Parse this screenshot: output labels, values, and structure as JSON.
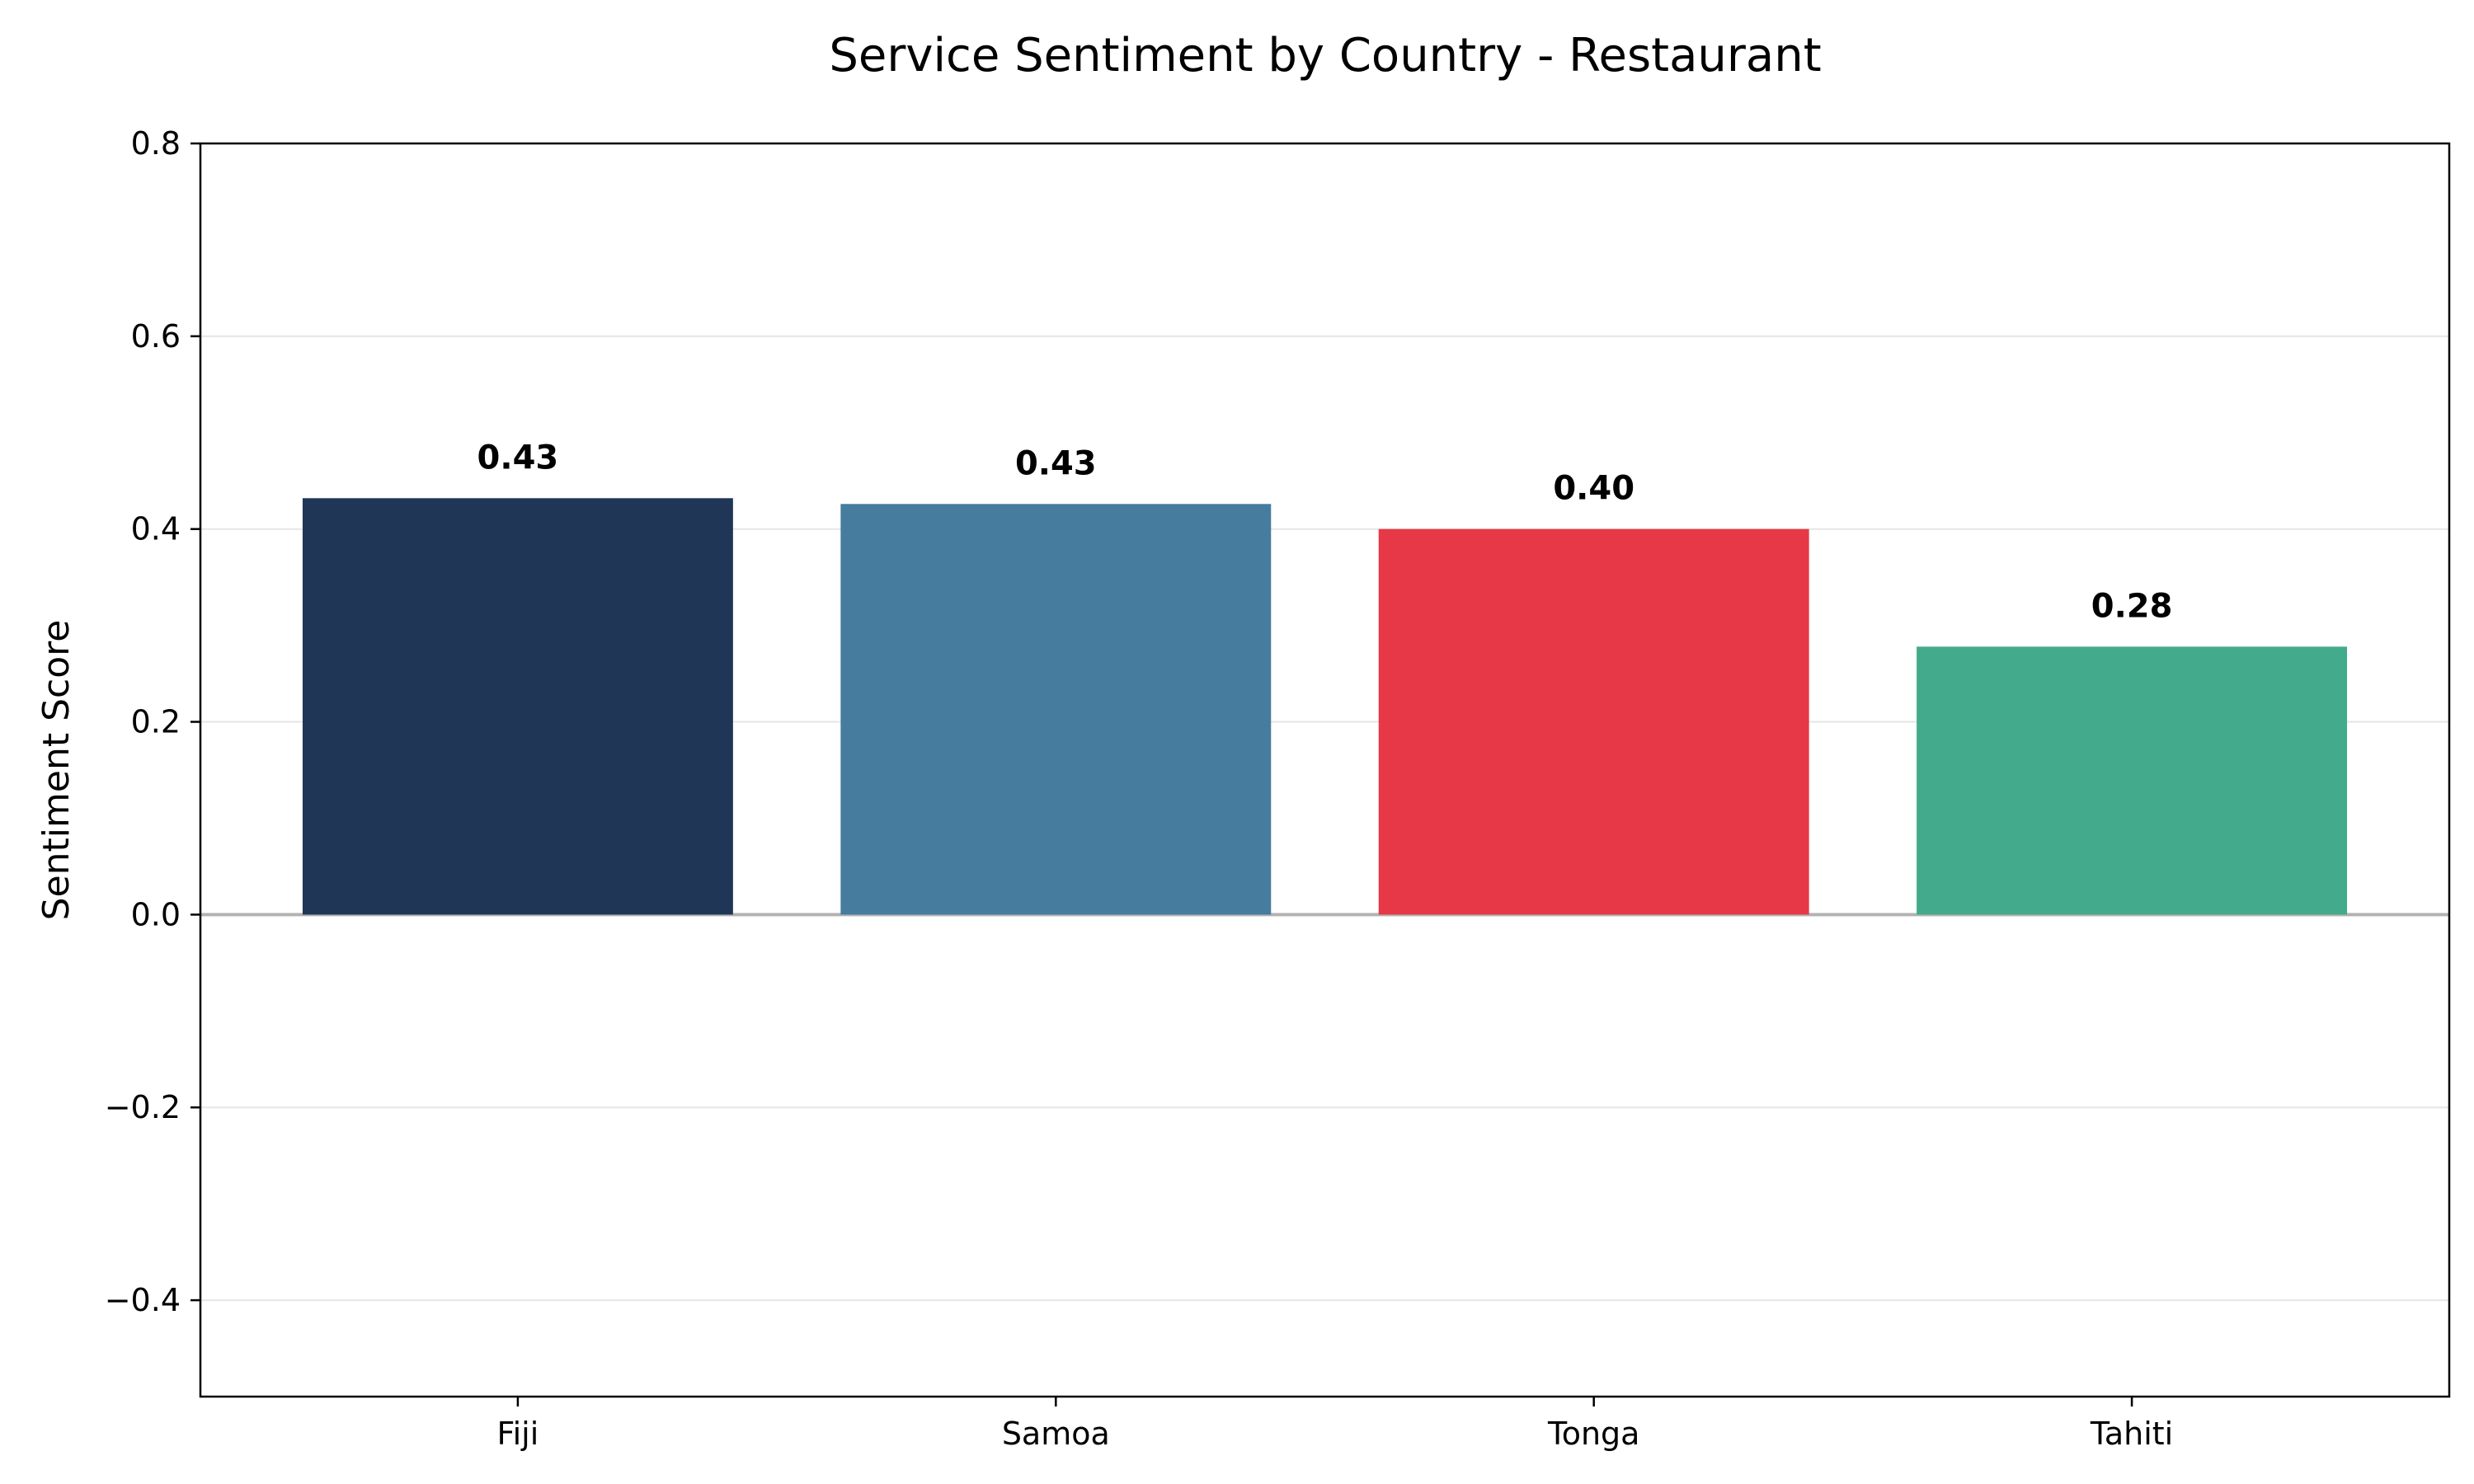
{
  "chart_data": {
    "type": "bar",
    "title": "Service Sentiment by Country - Restaurant",
    "xlabel": "",
    "ylabel": "Sentiment Score",
    "categories": [
      "Fiji",
      "Samoa",
      "Tonga",
      "Tahiti"
    ],
    "values": [
      0.432,
      0.426,
      0.4,
      0.278
    ],
    "value_labels": [
      "0.43",
      "0.43",
      "0.40",
      "0.28"
    ],
    "colors": [
      "#1f3657",
      "#467c9e",
      "#e63846",
      "#43aa8b"
    ],
    "ylim": [
      -0.5,
      0.8
    ],
    "yticks": [
      -0.4,
      -0.2,
      0.0,
      0.2,
      0.4,
      0.6,
      0.8
    ],
    "ytick_labels": [
      "−0.4",
      "−0.2",
      "0.0",
      "0.2",
      "0.4",
      "0.6",
      "0.8"
    ],
    "grid": true,
    "grid_axis": "y",
    "zero_line": true,
    "legend": "none"
  }
}
